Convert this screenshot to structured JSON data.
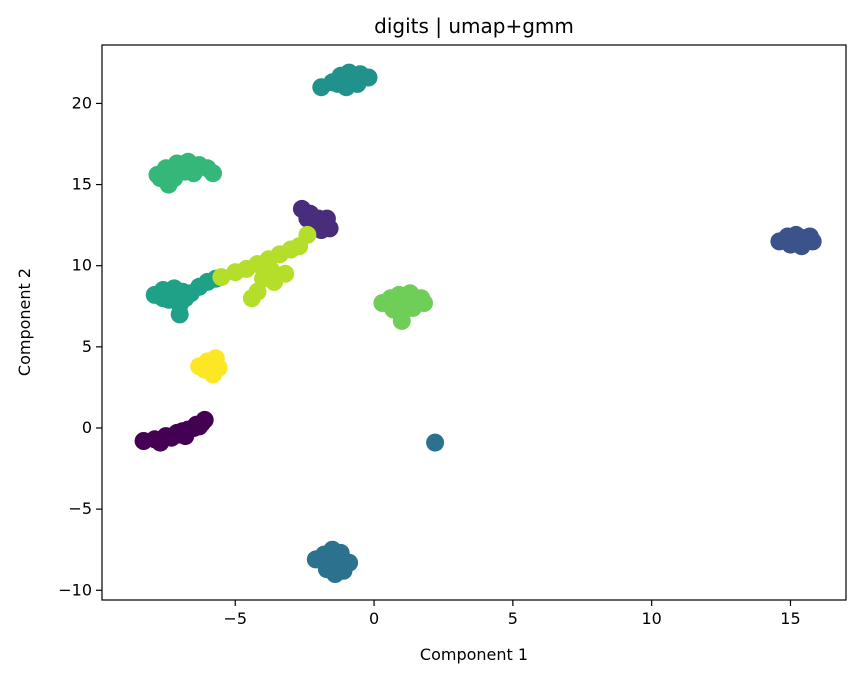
{
  "chart_data": {
    "type": "scatter",
    "title": "digits | umap+gmm",
    "xlabel": "Component 1",
    "ylabel": "Component 2",
    "xlim": [
      -9.8,
      17.0
    ],
    "ylim": [
      -10.6,
      23.6
    ],
    "xticks": [
      -5,
      0,
      5,
      10,
      15
    ],
    "yticks": [
      -10,
      -5,
      0,
      5,
      10,
      15,
      20
    ],
    "xtick_labels": [
      "−5",
      "0",
      "5",
      "10",
      "15"
    ],
    "ytick_labels": [
      "−10",
      "−5",
      "0",
      "5",
      "10",
      "15",
      "20"
    ],
    "grid": false,
    "legend": "none",
    "colormap": "viridis",
    "clusters": [
      {
        "color": "#440154",
        "points": [
          [
            -8.3,
            -0.8
          ],
          [
            -7.9,
            -0.7
          ],
          [
            -7.5,
            -0.5
          ],
          [
            -7.1,
            -0.3
          ],
          [
            -6.7,
            -0.1
          ],
          [
            -6.4,
            0.2
          ],
          [
            -6.1,
            0.5
          ],
          [
            -7.7,
            -0.9
          ],
          [
            -7.3,
            -0.6
          ],
          [
            -6.9,
            -0.2
          ],
          [
            -6.5,
            0.0
          ],
          [
            -6.2,
            0.3
          ],
          [
            -7.0,
            -0.4
          ],
          [
            -6.8,
            -0.5
          ],
          [
            -6.3,
            0.1
          ]
        ]
      },
      {
        "color": "#472d7b",
        "points": [
          [
            -2.6,
            13.5
          ],
          [
            -2.3,
            13.2
          ],
          [
            -2.0,
            12.9
          ],
          [
            -1.8,
            12.6
          ],
          [
            -1.6,
            12.3
          ],
          [
            -1.9,
            12.2
          ],
          [
            -2.2,
            12.8
          ],
          [
            -1.7,
            12.9
          ],
          [
            -2.4,
            12.9
          ]
        ]
      },
      {
        "color": "#3b528b",
        "points": [
          [
            14.6,
            11.5
          ],
          [
            14.9,
            11.8
          ],
          [
            15.2,
            11.9
          ],
          [
            15.5,
            11.7
          ],
          [
            15.8,
            11.5
          ],
          [
            15.4,
            11.2
          ],
          [
            15.0,
            11.3
          ],
          [
            15.7,
            11.8
          ],
          [
            15.3,
            11.5
          ]
        ]
      },
      {
        "color": "#2c728e",
        "points": [
          [
            -2.1,
            -8.1
          ],
          [
            -1.8,
            -7.8
          ],
          [
            -1.5,
            -7.5
          ],
          [
            -1.2,
            -7.7
          ],
          [
            -0.9,
            -8.3
          ],
          [
            -1.1,
            -8.8
          ],
          [
            -1.4,
            -9.0
          ],
          [
            -1.7,
            -8.7
          ],
          [
            -1.5,
            -8.3
          ],
          [
            -1.2,
            -8.1
          ],
          [
            2.2,
            -0.9
          ]
        ]
      },
      {
        "color": "#21918c",
        "points": [
          [
            -1.9,
            21.0
          ],
          [
            -1.5,
            21.3
          ],
          [
            -1.2,
            21.7
          ],
          [
            -0.9,
            21.9
          ],
          [
            -0.5,
            21.8
          ],
          [
            -0.2,
            21.6
          ],
          [
            -0.6,
            21.2
          ],
          [
            -1.0,
            21.0
          ],
          [
            -0.7,
            21.5
          ],
          [
            -1.3,
            21.2
          ]
        ]
      },
      {
        "color": "#1fa187",
        "points": [
          [
            -7.9,
            8.2
          ],
          [
            -7.6,
            8.5
          ],
          [
            -7.2,
            8.6
          ],
          [
            -6.9,
            8.4
          ],
          [
            -6.6,
            8.3
          ],
          [
            -6.3,
            8.7
          ],
          [
            -6.0,
            9.0
          ],
          [
            -5.7,
            9.2
          ],
          [
            -7.0,
            7.6
          ],
          [
            -7.0,
            7.0
          ],
          [
            -7.4,
            7.9
          ],
          [
            -6.8,
            8.0
          ],
          [
            -7.6,
            8.0
          ]
        ]
      },
      {
        "color": "#35b779",
        "points": [
          [
            -7.8,
            15.6
          ],
          [
            -7.5,
            16.0
          ],
          [
            -7.1,
            16.3
          ],
          [
            -6.7,
            16.4
          ],
          [
            -6.3,
            16.2
          ],
          [
            -6.0,
            16.0
          ],
          [
            -5.8,
            15.7
          ],
          [
            -7.2,
            15.4
          ],
          [
            -7.4,
            15.0
          ],
          [
            -6.8,
            15.8
          ],
          [
            -6.5,
            15.7
          ],
          [
            -7.7,
            15.4
          ]
        ]
      },
      {
        "color": "#6ece58",
        "points": [
          [
            0.3,
            7.7
          ],
          [
            0.6,
            8.0
          ],
          [
            0.9,
            8.2
          ],
          [
            1.3,
            8.3
          ],
          [
            1.7,
            8.0
          ],
          [
            1.8,
            7.7
          ],
          [
            1.4,
            7.4
          ],
          [
            1.0,
            7.0
          ],
          [
            1.0,
            6.6
          ],
          [
            0.7,
            7.3
          ],
          [
            1.2,
            7.8
          ]
        ]
      },
      {
        "color": "#b5de2b",
        "points": [
          [
            -5.5,
            9.3
          ],
          [
            -5.0,
            9.6
          ],
          [
            -4.6,
            9.8
          ],
          [
            -4.2,
            10.1
          ],
          [
            -3.8,
            10.4
          ],
          [
            -3.4,
            10.7
          ],
          [
            -3.0,
            11.0
          ],
          [
            -2.7,
            11.2
          ],
          [
            -4.0,
            9.2
          ],
          [
            -3.6,
            9.0
          ],
          [
            -4.2,
            8.4
          ],
          [
            -4.4,
            8.0
          ],
          [
            -3.2,
            9.5
          ],
          [
            -3.7,
            9.7
          ],
          [
            -2.4,
            11.9
          ]
        ]
      },
      {
        "color": "#fde725",
        "points": [
          [
            -6.3,
            3.8
          ],
          [
            -6.0,
            4.1
          ],
          [
            -5.7,
            4.3
          ],
          [
            -5.6,
            3.7
          ],
          [
            -5.8,
            3.3
          ],
          [
            -6.1,
            3.6
          ],
          [
            -5.9,
            3.9
          ]
        ]
      }
    ]
  }
}
